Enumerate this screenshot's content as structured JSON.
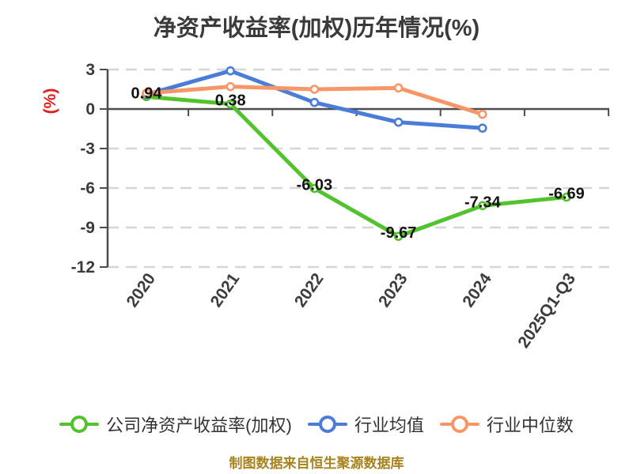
{
  "chart_data": {
    "type": "line",
    "title": "净资产收益率(加权)历年情况(%)",
    "categories": [
      "2020",
      "2021",
      "2022",
      "2023",
      "2024",
      "2025Q1-Q3"
    ],
    "series": [
      {
        "name": "公司净资产收益率(加权)",
        "color": "#52c32d",
        "values": [
          0.94,
          0.38,
          -6.03,
          -9.67,
          -7.34,
          -6.69
        ],
        "point_labels": [
          "0.94",
          "0.38",
          "-6.03",
          "-9.67",
          "-7.34",
          "-6.69"
        ],
        "show_labels": true
      },
      {
        "name": "行业均值",
        "color": "#4a7dd8",
        "values": [
          1.1,
          2.9,
          0.5,
          -1.0,
          -1.45,
          null
        ],
        "show_labels": false
      },
      {
        "name": "行业中位数",
        "color": "#f79768",
        "values": [
          1.2,
          1.7,
          1.5,
          1.6,
          -0.4,
          null
        ],
        "show_labels": false
      }
    ],
    "xlabel": "",
    "ylabel": "(%)",
    "ylim": [
      -12,
      3
    ],
    "yticks": [
      3,
      0,
      -3,
      -6,
      -9,
      -12
    ],
    "grid": "horizontal-dashed",
    "legend_position": "bottom",
    "source_note": "制图数据来自恒生聚源数据库"
  },
  "colors": {
    "background": "#ffffff",
    "grid": "#d6d6d6",
    "axis": "#4d4d4d",
    "tick_text": "#3a3a3a",
    "point_label_text": "#141414",
    "y_axis_name": "#e41b17",
    "source_note": "#a8821c",
    "marker_fill": "#ffffff"
  }
}
